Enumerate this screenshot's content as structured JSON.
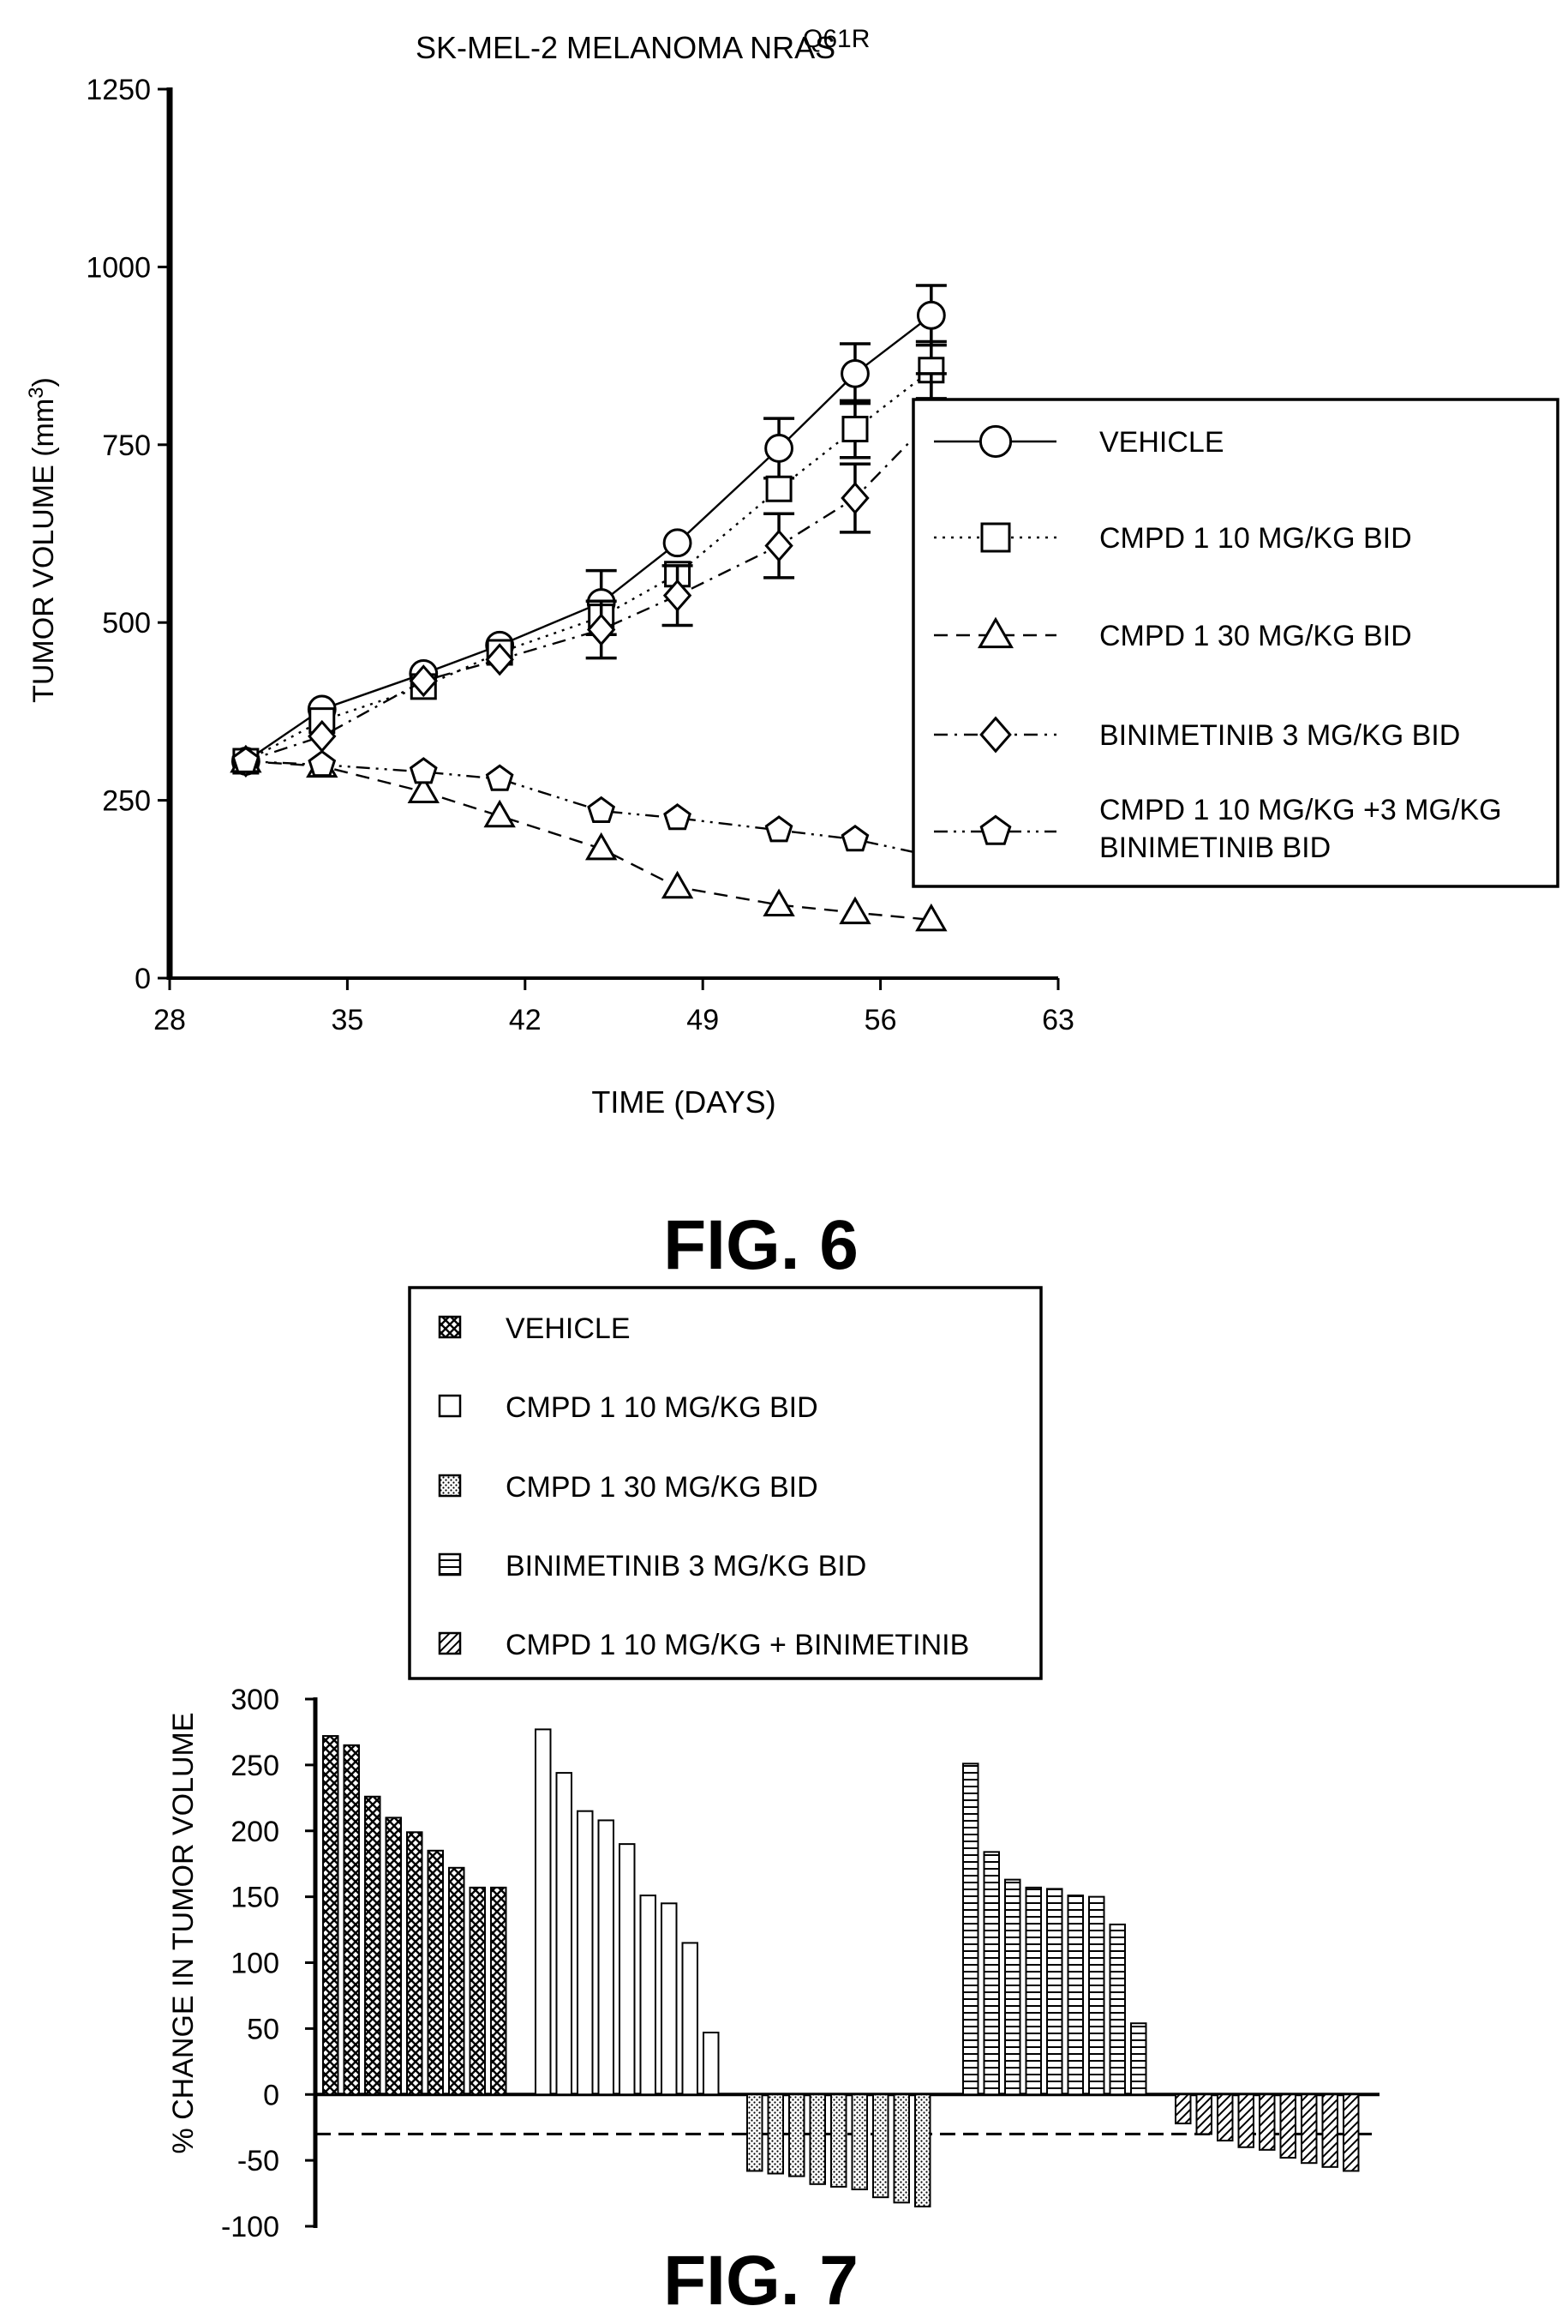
{
  "figures": {
    "fig6_caption": "FIG. 6",
    "fig7_caption": "FIG. 7"
  },
  "chart_data": [
    {
      "type": "line",
      "title": "SK-MEL-2 MELANOMA NRAS",
      "title_superscript": "Q61R",
      "xlabel": "TIME (DAYS)",
      "ylabel": "TUMOR VOLUME (mm",
      "ylabel_superscript": "3",
      "ylabel_close": ")",
      "xlim": [
        28,
        63
      ],
      "ylim": [
        0,
        1250
      ],
      "xticks": [
        28,
        35,
        42,
        49,
        56,
        63
      ],
      "yticks": [
        0,
        250,
        500,
        750,
        1000,
        1250
      ],
      "legend_position": "right",
      "x": [
        31,
        34,
        38,
        41,
        45,
        48,
        52,
        55,
        58
      ],
      "series": [
        {
          "name": "VEHICLE",
          "marker": "circle",
          "dash": "solid",
          "values": [
            305,
            378,
            428,
            468,
            528,
            612,
            745,
            850,
            932
          ],
          "errors": [
            0,
            0,
            0,
            0,
            45,
            0,
            42,
            42,
            42
          ]
        },
        {
          "name": "CMPD 1 10 MG/KG BID",
          "marker": "square",
          "dash": "dotted",
          "values": [
            305,
            362,
            410,
            458,
            508,
            568,
            688,
            772,
            855
          ],
          "errors": [
            0,
            0,
            0,
            0,
            0,
            0,
            0,
            40,
            40
          ]
        },
        {
          "name": "CMPD 1 30 MG/KG BID",
          "marker": "triangle",
          "dash": "dashed",
          "values": [
            305,
            298,
            262,
            228,
            182,
            128,
            103,
            92,
            82
          ],
          "errors": [
            0,
            0,
            0,
            0,
            0,
            0,
            0,
            0,
            0
          ]
        },
        {
          "name": "BINIMETINIB 3 MG/KG BID",
          "marker": "diamond",
          "dash": "dashdot",
          "values": [
            305,
            340,
            418,
            448,
            490,
            538,
            608,
            675,
            785
          ],
          "errors": [
            0,
            0,
            0,
            0,
            40,
            42,
            45,
            48,
            65
          ]
        },
        {
          "name": "CMPD 1 10 MG/KG +3 MG/KG BINIMETINIB BID",
          "name_lines": [
            "CMPD 1 10 MG/KG +3 MG/KG",
            "BINIMETINIB BID"
          ],
          "marker": "pentagon",
          "dash": "dashdotdot",
          "values": [
            305,
            300,
            290,
            280,
            235,
            225,
            208,
            195,
            172
          ],
          "errors": [
            0,
            0,
            0,
            0,
            0,
            0,
            0,
            0,
            0
          ]
        }
      ]
    },
    {
      "type": "bar",
      "title": "",
      "xlabel": "",
      "ylabel": "% CHANGE IN TUMOR VOLUME",
      "ylim": [
        -100,
        300
      ],
      "yticks": [
        -100,
        -50,
        0,
        50,
        100,
        150,
        200,
        250,
        300
      ],
      "reference_line": -30,
      "legend_position": "top",
      "series": [
        {
          "name": "VEHICLE",
          "pattern": "crosshatch",
          "values": [
            272,
            265,
            226,
            210,
            199,
            185,
            172,
            157,
            157
          ]
        },
        {
          "name": "CMPD 1 10 MG/KG BID",
          "pattern": "empty",
          "values": [
            277,
            244,
            215,
            208,
            190,
            151,
            145,
            115,
            47
          ]
        },
        {
          "name": "CMPD 1 30 MG/KG BID",
          "pattern": "dots",
          "values": [
            -58,
            -60,
            -62,
            -68,
            -70,
            -72,
            -78,
            -82,
            -85
          ]
        },
        {
          "name": "BINIMETINIB 3 MG/KG BID",
          "pattern": "hlines",
          "values": [
            251,
            184,
            163,
            157,
            156,
            151,
            150,
            129,
            54
          ]
        },
        {
          "name": "CMPD 1 10 MG/KG + BINIMETINIB",
          "pattern": "diagonal",
          "values": [
            -22,
            -30,
            -35,
            -40,
            -42,
            -48,
            -52,
            -55,
            -58
          ]
        }
      ]
    }
  ]
}
